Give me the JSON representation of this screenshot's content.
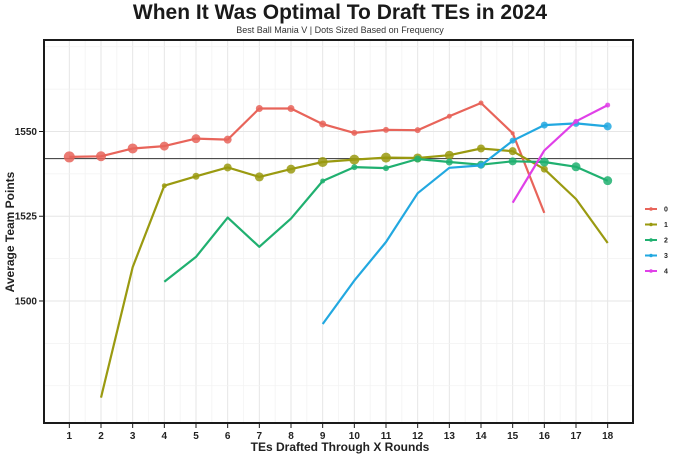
{
  "chart_data": {
    "type": "line",
    "title": "When It Was Optimal To Draft TEs in 2024",
    "subtitle": "Best Ball Mania V | Dots Sized Based on Frequency",
    "xlabel": "TEs Drafted Through X Rounds",
    "ylabel": "Average Team Points",
    "x_ticks": [
      1,
      2,
      3,
      4,
      5,
      6,
      7,
      8,
      9,
      10,
      11,
      12,
      13,
      14,
      15,
      16,
      17,
      18
    ],
    "y_ticks": [
      1500,
      1525,
      1550
    ],
    "xlim": [
      0.2,
      18.8
    ],
    "ylim": [
      1464,
      1577
    ],
    "reference_line": 1542,
    "grid": true,
    "legend_position": "right",
    "series": [
      {
        "name": "0",
        "color": "#e8645a",
        "x": [
          1,
          2,
          3,
          4,
          5,
          6,
          7,
          8,
          9,
          10,
          11,
          12,
          13,
          14,
          15,
          16
        ],
        "y": [
          1542.5,
          1542.7,
          1545,
          1545.7,
          1547.9,
          1547.6,
          1556.8,
          1556.8,
          1552.2,
          1549.6,
          1550.5,
          1550.4,
          1554.5,
          1558.4,
          1549.5,
          1526
        ],
        "dots": [
          true,
          true,
          true,
          true,
          true,
          true,
          true,
          true,
          true,
          true,
          true,
          true,
          true,
          true,
          true,
          false
        ],
        "sizes": [
          5.5,
          5,
          5,
          4.5,
          4.5,
          4,
          3.5,
          3.5,
          3.5,
          3,
          3,
          3,
          2.5,
          2.5,
          2,
          0
        ]
      },
      {
        "name": "1",
        "color": "#9a9a10",
        "x": [
          2,
          3,
          4,
          5,
          6,
          7,
          8,
          9,
          10,
          11,
          12,
          13,
          14,
          15,
          16,
          17,
          18
        ],
        "y": [
          1471.5,
          1510,
          1534,
          1536.8,
          1539.4,
          1536.6,
          1538.9,
          1541,
          1541.7,
          1542.3,
          1542.2,
          1543,
          1545,
          1544.2,
          1538.9,
          1530.1,
          1517.1
        ],
        "dots": [
          false,
          false,
          true,
          true,
          true,
          true,
          true,
          true,
          true,
          true,
          true,
          true,
          true,
          true,
          true,
          false,
          false
        ],
        "sizes": [
          0,
          0,
          2.5,
          3.5,
          4,
          4.5,
          4.5,
          5,
          5,
          5,
          4.5,
          4.5,
          4,
          4,
          3.5,
          0,
          0
        ]
      },
      {
        "name": "2",
        "color": "#20b070",
        "x": [
          4,
          5,
          6,
          7,
          8,
          9,
          10,
          11,
          12,
          13,
          14,
          15,
          16,
          17,
          18
        ],
        "y": [
          1505.7,
          1513,
          1524.6,
          1516,
          1524.3,
          1535.4,
          1539.5,
          1539.2,
          1541.9,
          1541,
          1540.2,
          1541.2,
          1541,
          1539.6,
          1535.5
        ],
        "dots": [
          false,
          false,
          false,
          false,
          false,
          true,
          true,
          true,
          true,
          true,
          true,
          true,
          true,
          true,
          true
        ],
        "sizes": [
          0,
          0,
          0,
          0,
          0,
          2.5,
          3,
          3,
          3.5,
          3.5,
          4,
          4,
          4.5,
          4.5,
          4.5
        ]
      },
      {
        "name": "3",
        "color": "#22a8e0",
        "x": [
          9,
          10,
          11,
          12,
          13,
          14,
          15,
          16,
          17,
          18
        ],
        "y": [
          1493.2,
          1506,
          1517.4,
          1531.8,
          1539.3,
          1540,
          1547.3,
          1551.9,
          1552.4,
          1551.5
        ],
        "dots": [
          false,
          false,
          false,
          false,
          false,
          true,
          true,
          true,
          true,
          true
        ],
        "sizes": [
          0,
          0,
          0,
          0,
          0,
          3,
          3,
          3.5,
          3.5,
          4
        ]
      },
      {
        "name": "4",
        "color": "#e040e8",
        "x": [
          15,
          16,
          17,
          18
        ],
        "y": [
          1529,
          1544.4,
          1553,
          1557.8
        ],
        "dots": [
          false,
          false,
          true,
          true
        ],
        "sizes": [
          0,
          0,
          2.5,
          2.5
        ]
      }
    ]
  }
}
